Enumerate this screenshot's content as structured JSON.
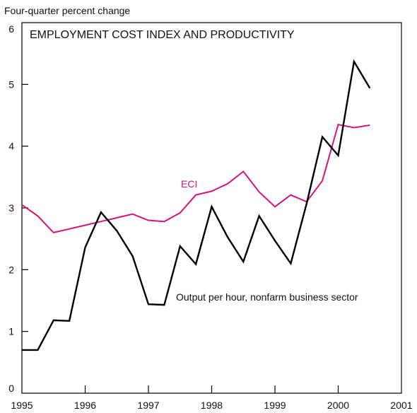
{
  "chart_data": {
    "type": "line",
    "title": "EMPLOYMENT COST INDEX AND PRODUCTIVITY",
    "ylabel": "Four-quarter percent change",
    "xlabel": "",
    "xlim": [
      1995,
      2001
    ],
    "ylim": [
      0,
      6
    ],
    "x_ticks": [
      1995,
      1996,
      1997,
      1998,
      1999,
      2000,
      2001
    ],
    "y_ticks": [
      0,
      1,
      2,
      3,
      4,
      5,
      6
    ],
    "grid": false,
    "colors": {
      "eci": "#d6137a",
      "productivity": "#000000"
    },
    "series": [
      {
        "name": "ECI",
        "color": "#d6137a",
        "x": [
          1995.0,
          1995.25,
          1995.5,
          1995.75,
          1996.0,
          1996.25,
          1996.5,
          1996.75,
          1997.0,
          1997.25,
          1997.5,
          1997.75,
          1998.0,
          1998.25,
          1998.5,
          1998.75,
          1999.0,
          1999.25,
          1999.5,
          1999.75,
          2000.0,
          2000.25,
          2000.5
        ],
        "values": [
          3.05,
          2.87,
          2.6,
          2.66,
          2.72,
          2.78,
          2.84,
          2.9,
          2.8,
          2.78,
          2.92,
          3.21,
          3.27,
          3.39,
          3.59,
          3.26,
          3.02,
          3.21,
          3.1,
          3.44,
          4.35,
          4.3,
          4.34
        ]
      },
      {
        "name": "Output per hour, nonfarm business sector",
        "color": "#000000",
        "x": [
          1995.0,
          1995.25,
          1995.5,
          1995.75,
          1996.0,
          1996.25,
          1996.5,
          1996.75,
          1997.0,
          1997.25,
          1997.5,
          1997.75,
          1998.0,
          1998.25,
          1998.5,
          1998.75,
          1999.0,
          1999.25,
          1999.5,
          1999.75,
          2000.0,
          2000.25,
          2000.5
        ],
        "values": [
          0.7,
          0.7,
          1.18,
          1.17,
          2.36,
          2.93,
          2.63,
          2.22,
          1.44,
          1.43,
          2.38,
          2.09,
          3.02,
          2.53,
          2.13,
          2.87,
          2.47,
          2.1,
          3.07,
          4.15,
          3.85,
          5.37,
          4.94
        ]
      }
    ],
    "annotations": [
      {
        "text": "ECI",
        "series": "ECI"
      },
      {
        "text": "Output per hour, nonfarm business sector",
        "series": "Output per hour, nonfarm business sector"
      }
    ]
  }
}
